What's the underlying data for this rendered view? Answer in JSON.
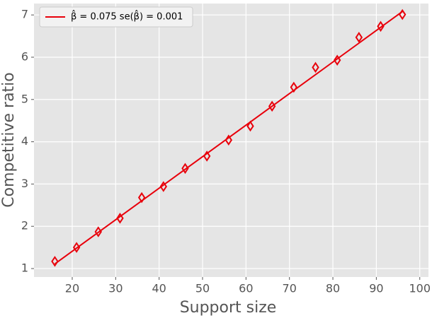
{
  "chart_data": {
    "type": "scatter",
    "xlabel": "Support size",
    "ylabel": "Competitive ratio",
    "x": [
      16,
      21,
      26,
      31,
      36,
      41,
      46,
      51,
      56,
      61,
      66,
      71,
      76,
      81,
      86,
      91,
      96
    ],
    "values": [
      1.17,
      1.5,
      1.87,
      2.19,
      2.68,
      2.94,
      3.37,
      3.66,
      4.04,
      4.37,
      4.84,
      5.29,
      5.76,
      5.93,
      6.47,
      6.73,
      7.01
    ],
    "color": "#e8000b",
    "fit": {
      "name": "β̂ = 0.075  se(β̂) = 0.001",
      "x": [
        16,
        96
      ],
      "values": [
        1.11,
        7.08
      ],
      "color": "#e8000b"
    },
    "xlim": [
      11.2,
      102
    ],
    "xticks": [
      20,
      30,
      40,
      50,
      60,
      70,
      80,
      90,
      100
    ],
    "ylim": [
      0.8,
      7.27
    ],
    "yticks": [
      1,
      2,
      3,
      4,
      5,
      6,
      7
    ],
    "grid": true,
    "legend": "upper left"
  }
}
